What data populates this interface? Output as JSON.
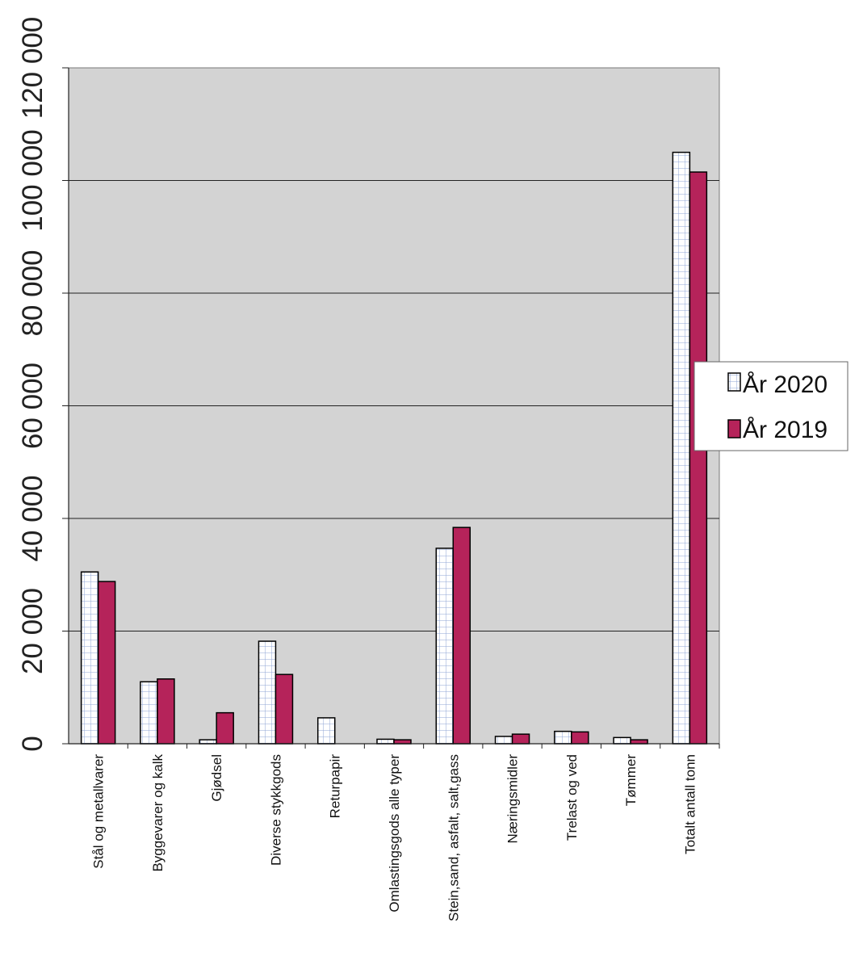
{
  "chart_data": {
    "type": "bar",
    "categories": [
      "Stål og metallvarer",
      "Byggevarer og kalk",
      "Gjødsel",
      "Diverse stykkgods",
      "Returpapir",
      "Omlastingsgods alle typer",
      "Stein,sand, asfalt, salt,gass",
      "Næringsmidler",
      "Trelast og ved",
      "Tømmer",
      "Totalt antall tonn"
    ],
    "series": [
      {
        "name": "År 2020",
        "color": "#ffffff",
        "values": [
          30500,
          11000,
          700,
          18200,
          4600,
          800,
          34700,
          1300,
          2200,
          1100,
          105000
        ]
      },
      {
        "name": "År 2019",
        "color": "#b5235a",
        "values": [
          28800,
          11500,
          5500,
          12300,
          0,
          700,
          38400,
          1700,
          2100,
          700,
          101500
        ]
      }
    ],
    "ylim": [
      0,
      120000
    ],
    "yticks": [
      "0",
      "20 000",
      "40 000",
      "60 000",
      "80 000",
      "100 000",
      "120 000"
    ],
    "ytick_values": [
      0,
      20000,
      40000,
      60000,
      80000,
      100000,
      120000
    ],
    "grid": true,
    "legend_position": "right",
    "plot_background": "#d3d3d3"
  }
}
